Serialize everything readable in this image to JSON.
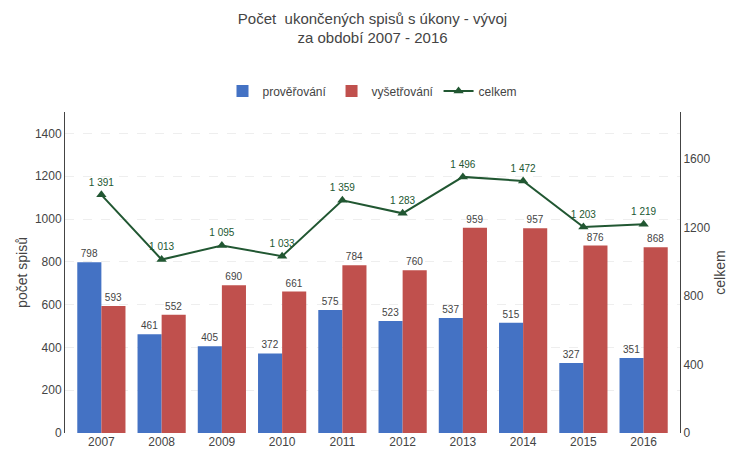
{
  "chart_data": {
    "type": "bar",
    "title": "Počet  ukončených spisů s úkony - vývoj",
    "subtitle": "za období 2007 - 2016",
    "categories": [
      "2007",
      "2008",
      "2009",
      "2010",
      "2011",
      "2012",
      "2013",
      "2014",
      "2015",
      "2016"
    ],
    "series": [
      {
        "name": "prověřování",
        "type": "bar",
        "color": "#4472C4",
        "values": [
          798,
          461,
          405,
          372,
          575,
          523,
          537,
          515,
          327,
          351
        ]
      },
      {
        "name": "vyšetřování",
        "type": "bar",
        "color": "#C0504D",
        "values": [
          593,
          552,
          690,
          661,
          784,
          760,
          959,
          957,
          876,
          868
        ]
      },
      {
        "name": "celkem",
        "type": "line",
        "axis": "y2",
        "color": "#215732",
        "marker": "triangle-up",
        "values": [
          1391,
          1013,
          1095,
          1033,
          1359,
          1283,
          1496,
          1472,
          1203,
          1219
        ],
        "value_labels": [
          "1 391",
          "1 013",
          "1 095",
          "1 033",
          "1 359",
          "1 283",
          "1 496",
          "1 472",
          "1 203",
          "1 219"
        ]
      }
    ],
    "ylabel": "počet spisů",
    "y2label": "celkem",
    "ylim": [
      0,
      1500
    ],
    "yticks": [
      0,
      200,
      400,
      600,
      800,
      1000,
      1200,
      1400
    ],
    "y2lim": [
      0,
      1875
    ],
    "y2ticks": [
      0,
      400,
      800,
      1200,
      1600
    ],
    "grid": true,
    "data_labels": true,
    "legend": "top"
  }
}
